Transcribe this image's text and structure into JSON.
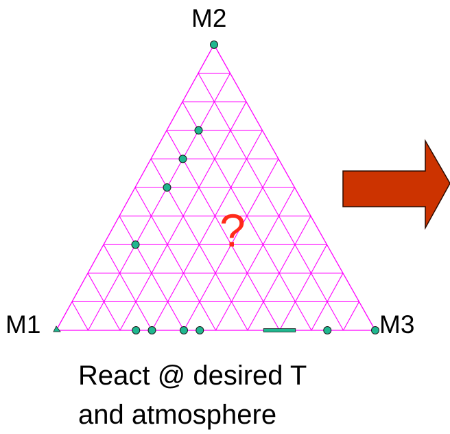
{
  "vertices": {
    "top": "M2",
    "left": "M1",
    "right": "M3"
  },
  "question_mark": "?",
  "caption": {
    "line1": "React @ desired T",
    "line2": "and atmosphere"
  },
  "colors": {
    "grid": "#ff00ff",
    "point_fill": "#1fb78f",
    "point_stroke": "#1a1a1a",
    "question_mark": "#ff2a1a",
    "arrow_fill": "#cc3300",
    "arrow_stroke": "#2a0a00",
    "text": "#000000"
  },
  "grid_divisions": 10,
  "arrow_shape": "block-arrow-right",
  "compositions": [
    {
      "m1": 0.0,
      "m2": 1.0,
      "m3": 0.0,
      "marker": "circle"
    },
    {
      "m1": 0.2,
      "m2": 0.7,
      "m3": 0.1,
      "marker": "circle"
    },
    {
      "m1": 0.3,
      "m2": 0.6,
      "m3": 0.1,
      "marker": "circle"
    },
    {
      "m1": 0.4,
      "m2": 0.5,
      "m3": 0.1,
      "marker": "circle"
    },
    {
      "m1": 0.6,
      "m2": 0.3,
      "m3": 0.1,
      "marker": "circle"
    },
    {
      "m1": 1.0,
      "m2": 0.0,
      "m3": 0.0,
      "marker": "triangle"
    },
    {
      "m1": 0.75,
      "m2": 0.0,
      "m3": 0.25,
      "marker": "circle"
    },
    {
      "m1": 0.7,
      "m2": 0.0,
      "m3": 0.3,
      "marker": "circle"
    },
    {
      "m1": 0.6,
      "m2": 0.0,
      "m3": 0.4,
      "marker": "circle"
    },
    {
      "m1": 0.55,
      "m2": 0.0,
      "m3": 0.45,
      "marker": "circle"
    },
    {
      "m1": 0.15,
      "m2": 0.0,
      "m3": 0.85,
      "marker": "circle"
    },
    {
      "m1": 0.0,
      "m2": 0.0,
      "m3": 1.0,
      "marker": "circle"
    }
  ],
  "composition_range": {
    "m1_from": 0.35,
    "m1_to": 0.25,
    "m2": 0.0,
    "marker": "bar"
  }
}
